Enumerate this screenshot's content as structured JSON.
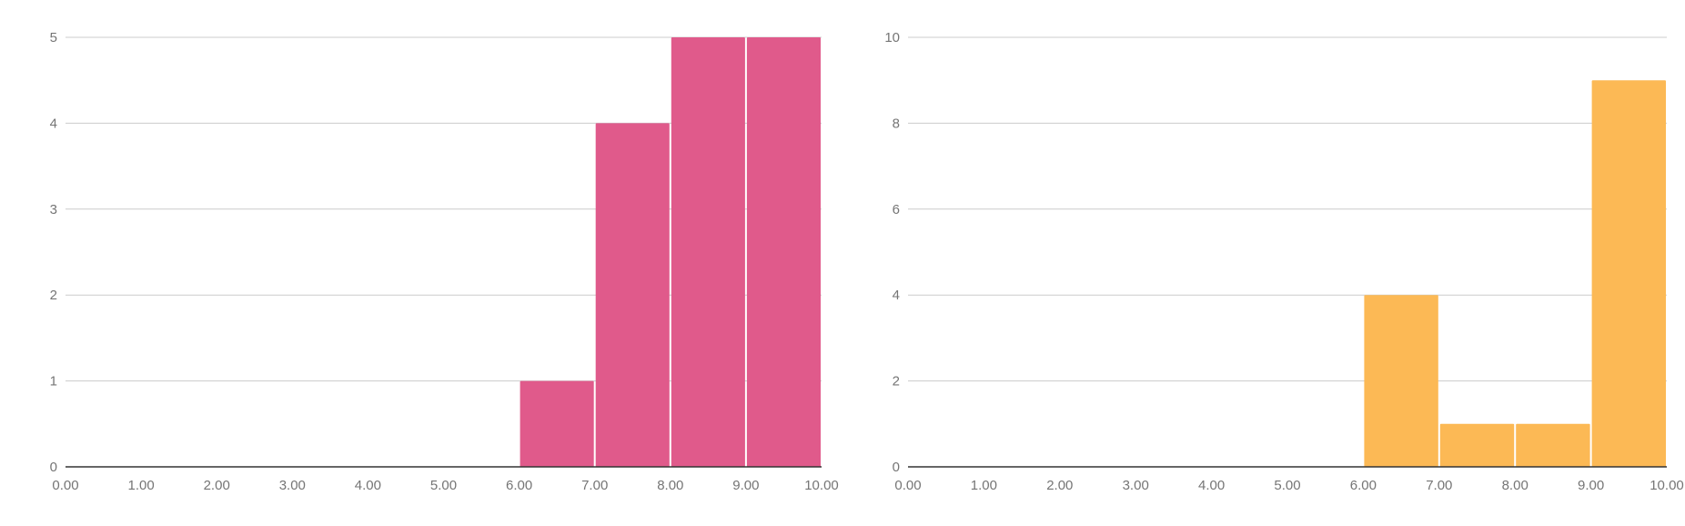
{
  "chart_data": [
    {
      "type": "bar",
      "title": "",
      "xlabel": "",
      "ylabel": "",
      "color": "#e05a8b",
      "bins": [
        {
          "x0": 6,
          "x1": 7,
          "value": 1
        },
        {
          "x0": 7,
          "x1": 8,
          "value": 4
        },
        {
          "x0": 8,
          "x1": 9,
          "value": 5
        },
        {
          "x0": 9,
          "x1": 10,
          "value": 5
        }
      ],
      "xlim": [
        0,
        10
      ],
      "ylim": [
        0,
        5
      ],
      "x_ticks": [
        "0.00",
        "1.00",
        "2.00",
        "3.00",
        "4.00",
        "5.00",
        "6.00",
        "7.00",
        "8.00",
        "9.00",
        "10.00"
      ],
      "y_ticks": [
        0,
        1,
        2,
        3,
        4,
        5
      ],
      "grid": true
    },
    {
      "type": "bar",
      "title": "",
      "xlabel": "",
      "ylabel": "",
      "color": "#fcb955",
      "bins": [
        {
          "x0": 6,
          "x1": 7,
          "value": 4
        },
        {
          "x0": 7,
          "x1": 8,
          "value": 1
        },
        {
          "x0": 8,
          "x1": 9,
          "value": 1
        },
        {
          "x0": 9,
          "x1": 10,
          "value": 9
        }
      ],
      "xlim": [
        0,
        10
      ],
      "ylim": [
        0,
        10
      ],
      "x_ticks": [
        "0.00",
        "1.00",
        "2.00",
        "3.00",
        "4.00",
        "5.00",
        "6.00",
        "7.00",
        "8.00",
        "9.00",
        "10.00"
      ],
      "y_ticks": [
        0,
        2,
        4,
        6,
        8,
        10
      ],
      "grid": true
    }
  ]
}
